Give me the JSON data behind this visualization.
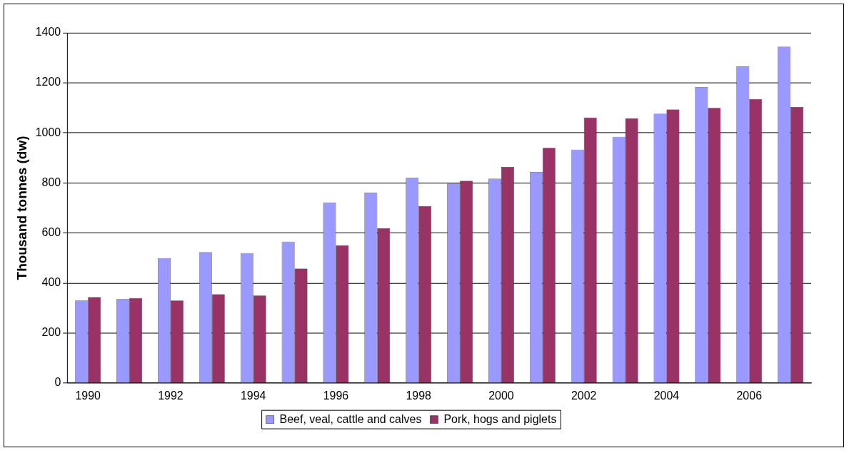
{
  "chart_data": {
    "type": "bar",
    "ylabel": "Thousand tonnes (dw)",
    "categories": [
      "1990",
      null,
      "1992",
      null,
      "1994",
      null,
      "1996",
      null,
      "1998",
      null,
      "2000",
      null,
      "2002",
      null,
      "2004",
      null,
      "2006",
      null
    ],
    "series": [
      {
        "name": "Beef, veal, cattle and calves",
        "color": "#9999ff",
        "values": [
          330,
          336,
          500,
          523,
          520,
          565,
          722,
          761,
          820,
          797,
          817,
          844,
          933,
          984,
          1076,
          1183,
          1266,
          1344
        ]
      },
      {
        "name": "Pork, hogs and piglets",
        "color": "#993366",
        "values": [
          344,
          340,
          330,
          355,
          350,
          458,
          551,
          619,
          708,
          808,
          864,
          940,
          1061,
          1058,
          1093,
          1100,
          1135,
          1103
        ]
      }
    ],
    "ylim": [
      0,
      1400
    ],
    "yticks": [
      0,
      200,
      400,
      600,
      800,
      1000,
      1200,
      1400
    ],
    "grid": "y",
    "legend": "bottom"
  }
}
